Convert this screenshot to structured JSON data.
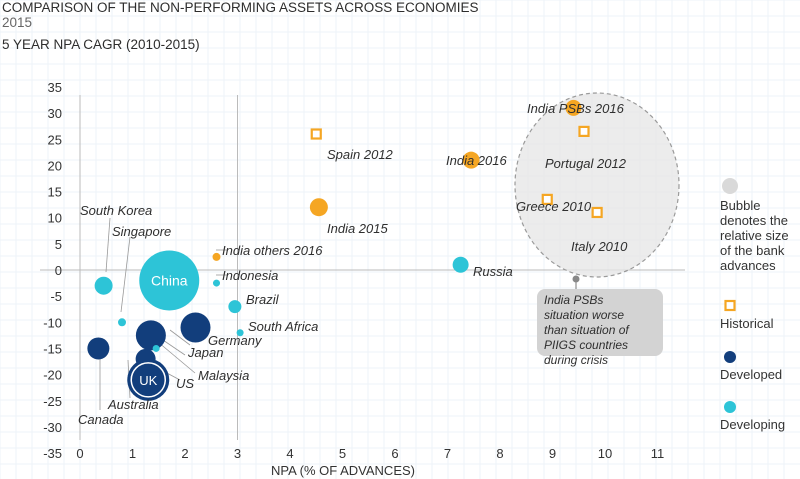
{
  "titles": {
    "line1": "COMPARISON OF THE NON-PERFORMING ASSETS ACROSS ECONOMIES",
    "line2": "2015",
    "line3": "5 YEAR NPA CAGR (2010-2015)"
  },
  "colors": {
    "historical": "#f5a623",
    "developed": "#123e7c",
    "developing": "#2dc4d7",
    "bubble_legend": "#d9d9d9",
    "annotation_box": "#d3d3d3",
    "grid": "#cfcfcf"
  },
  "chart_data": {
    "type": "scatter",
    "xlabel": "NPA (% OF ADVANCES)",
    "ylabel": "",
    "xlim": [
      -0.5,
      11.5
    ],
    "ylim": [
      -37,
      37
    ],
    "x_ticks": [
      "0",
      "1",
      "2",
      "3",
      "4",
      "5",
      "6",
      "7",
      "8",
      "9",
      "10",
      "11"
    ],
    "y_ticks": [
      "35",
      "30",
      "25",
      "20",
      "15",
      "10",
      "5",
      "0",
      "-5",
      "-10",
      "-15",
      "-20",
      "-25",
      "-30",
      "-35"
    ],
    "points": [
      {
        "name": "China",
        "x": 1.7,
        "y": -2,
        "bubble": 30,
        "category": "developing",
        "label_inside": true
      },
      {
        "name": "South Korea",
        "x": 0.45,
        "y": -3,
        "bubble": 9,
        "category": "developing"
      },
      {
        "name": "Singapore",
        "x": 0.8,
        "y": -10,
        "bubble": 4,
        "category": "developing"
      },
      {
        "name": "India others 2016",
        "x": 2.6,
        "y": 2.5,
        "bubble": 4,
        "category": "historical"
      },
      {
        "name": "Indonesia",
        "x": 2.6,
        "y": -2.5,
        "bubble": 3.5,
        "category": "developing"
      },
      {
        "name": "Brazil",
        "x": 2.95,
        "y": -7,
        "bubble": 6.5,
        "category": "developing"
      },
      {
        "name": "South Africa",
        "x": 3.05,
        "y": -12,
        "bubble": 3.5,
        "category": "developing"
      },
      {
        "name": "Germany",
        "x": 2.2,
        "y": -11,
        "bubble": 15,
        "category": "developing_dark"
      },
      {
        "name": "Japan",
        "x": 1.35,
        "y": -12.5,
        "bubble": 15,
        "category": "developing_dark"
      },
      {
        "name": "Malaysia",
        "x": 1.45,
        "y": -15,
        "bubble": 3.5,
        "category": "developing"
      },
      {
        "name": "US",
        "x": 1.25,
        "y": -17,
        "bubble": 10,
        "category": "developing_dark"
      },
      {
        "name": "UK",
        "x": 1.3,
        "y": -21,
        "bubble": 21,
        "category": "developing_dark",
        "label_inside": true
      },
      {
        "name": "Canada",
        "x": 0.35,
        "y": -15,
        "bubble": 11,
        "category": "developing_dark"
      },
      {
        "name": "Australia",
        "x": 0.65,
        "y": -17,
        "bubble": 0,
        "category": "developing_dark"
      },
      {
        "name": "Russia",
        "x": 7.25,
        "y": 1,
        "bubble": 8,
        "category": "developing"
      },
      {
        "name": "India 2015",
        "x": 4.55,
        "y": 12,
        "bubble": 9,
        "category": "historical"
      },
      {
        "name": "India 2016",
        "x": 7.45,
        "y": 21,
        "bubble": 8.5,
        "category": "historical"
      },
      {
        "name": "India PSBs 2016",
        "x": 9.4,
        "y": 31,
        "bubble": 8,
        "category": "historical"
      },
      {
        "name": "Spain 2012",
        "x": 4.5,
        "y": 26,
        "bubble": 0,
        "category": "historical_square"
      },
      {
        "name": "Portugal 2012",
        "x": 9.6,
        "y": 26.5,
        "bubble": 0,
        "category": "historical_square"
      },
      {
        "name": "Greece 2010",
        "x": 8.9,
        "y": 13.5,
        "bubble": 0,
        "category": "historical_square"
      },
      {
        "name": "Italy 2010",
        "x": 9.85,
        "y": 11,
        "bubble": 0,
        "category": "historical_square"
      }
    ],
    "annotation": "India PSBs situation worse than situation of PIIGS countries during crisis",
    "legend": [
      {
        "label": "Bubble denotes the relative size of the bank advances",
        "kind": "bubble"
      },
      {
        "label": "Historical",
        "kind": "historical"
      },
      {
        "label": "Developed",
        "kind": "developed"
      },
      {
        "label": "Developing",
        "kind": "developing"
      }
    ]
  }
}
